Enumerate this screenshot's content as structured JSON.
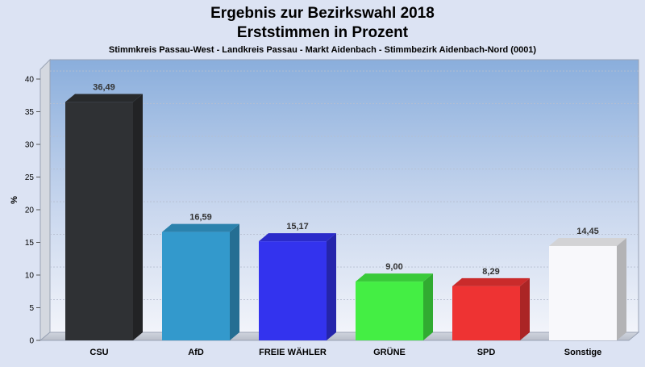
{
  "chart_data": {
    "type": "bar",
    "title": "Ergebnis zur Bezirkswahl 2018",
    "title_line2": "Erststimmen in Prozent",
    "subtitle": "Stimmkreis Passau-West - Landkreis Passau - Markt Aidenbach - Stimmbezirk Aidenbach-Nord (0001)",
    "ylabel": "%",
    "xlabel": "",
    "ylim": [
      0,
      40
    ],
    "yticks": [
      0,
      5,
      10,
      15,
      20,
      25,
      30,
      35,
      40
    ],
    "grid": true,
    "categories": [
      "CSU",
      "AfD",
      "FREIE WÄHLER",
      "GRÜNE",
      "SPD",
      "Sonstige"
    ],
    "values": [
      36.49,
      16.59,
      15.17,
      9.0,
      8.29,
      14.45
    ],
    "value_labels": [
      "36,49",
      "16,59",
      "15,17",
      "9,00",
      "8,29",
      "14,45"
    ],
    "colors": [
      "#2f3134",
      "#3399cc",
      "#3333ee",
      "#44ee44",
      "#ee3333",
      "#f8f8fb"
    ]
  }
}
